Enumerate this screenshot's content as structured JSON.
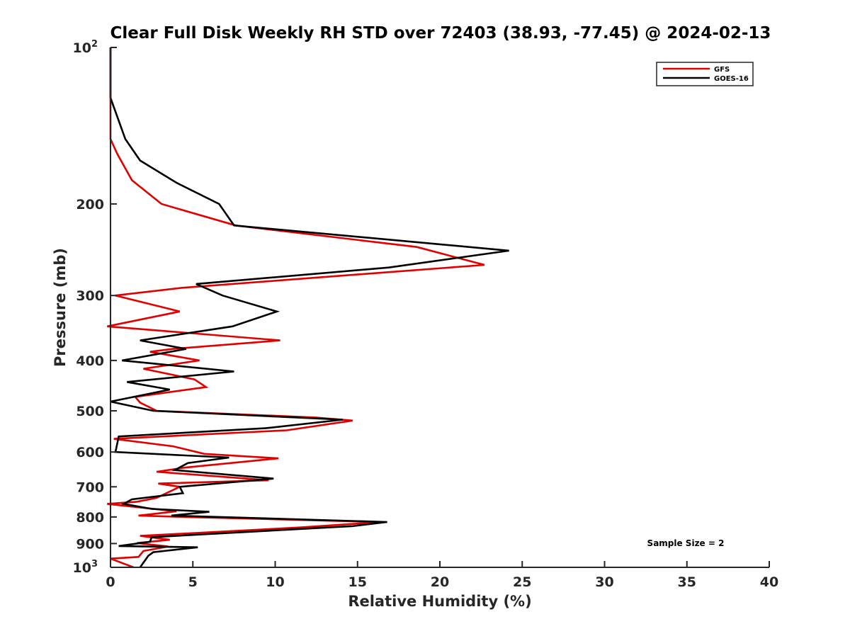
{
  "chart_data": {
    "type": "line",
    "title": "Clear Full Disk Weekly RH STD over 72403 (38.93, -77.45) @ 2024-02-13",
    "xlabel": "Relative Humidity (%)",
    "ylabel": "Pressure (mb)",
    "xlim": [
      0,
      40
    ],
    "ylim": [
      100,
      1000
    ],
    "y_scale": "log",
    "y_reversed": true,
    "grid": false,
    "legend_position": "top-right",
    "x_ticks": [
      "0",
      "5",
      "10",
      "15",
      "20",
      "25",
      "30",
      "35",
      "40"
    ],
    "y_ticks": [
      {
        "p": 100,
        "base": "10",
        "exp": "2"
      },
      {
        "p": 200,
        "base": "200",
        "exp": ""
      },
      {
        "p": 300,
        "base": "300",
        "exp": ""
      },
      {
        "p": 400,
        "base": "400",
        "exp": ""
      },
      {
        "p": 500,
        "base": "500",
        "exp": ""
      },
      {
        "p": 600,
        "base": "600",
        "exp": ""
      },
      {
        "p": 700,
        "base": "700",
        "exp": ""
      },
      {
        "p": 800,
        "base": "800",
        "exp": ""
      },
      {
        "p": 900,
        "base": "900",
        "exp": ""
      },
      {
        "p": 1000,
        "base": "10",
        "exp": "3"
      }
    ],
    "annotation": "Sample Size = 2",
    "series": [
      {
        "name": "GFS",
        "color": "#e00000",
        "points": [
          [
            0,
            100
          ],
          [
            0,
            125
          ],
          [
            0,
            150
          ],
          [
            0.4,
            160
          ],
          [
            1.3,
            180
          ],
          [
            3.1,
            200
          ],
          [
            7.6,
            220
          ],
          [
            18.6,
            242
          ],
          [
            22.7,
            262
          ],
          [
            4.3,
            290
          ],
          [
            0.3,
            300
          ],
          [
            4.2,
            322
          ],
          [
            -0.2,
            344
          ],
          [
            10.3,
            366
          ],
          [
            3.8,
            380
          ],
          [
            2.4,
            385
          ],
          [
            5.4,
            400
          ],
          [
            2,
            415
          ],
          [
            5.1,
            435
          ],
          [
            5.8,
            450
          ],
          [
            1.5,
            470
          ],
          [
            1.8,
            482
          ],
          [
            2.8,
            500
          ],
          [
            12.5,
            515
          ],
          [
            14.7,
            522
          ],
          [
            10.7,
            545
          ],
          [
            0.2,
            566
          ],
          [
            3.8,
            585
          ],
          [
            5.7,
            605
          ],
          [
            10.2,
            617
          ],
          [
            4.5,
            643
          ],
          [
            2.8,
            655
          ],
          [
            9.6,
            680
          ],
          [
            2.9,
            690
          ],
          [
            4.2,
            700
          ],
          [
            2.8,
            735
          ],
          [
            1.6,
            748
          ],
          [
            -0.2,
            755
          ],
          [
            2.3,
            770
          ],
          [
            4,
            780
          ],
          [
            2.5,
            790
          ],
          [
            1.7,
            795
          ],
          [
            4.6,
            800
          ],
          [
            16.4,
            818
          ],
          [
            11.5,
            838
          ],
          [
            1.8,
            870
          ],
          [
            3.6,
            885
          ],
          [
            1.6,
            898
          ],
          [
            3.5,
            912
          ],
          [
            2,
            930
          ],
          [
            1.7,
            955
          ],
          [
            0,
            962
          ],
          [
            1.4,
            1000
          ]
        ]
      },
      {
        "name": "GOES-16",
        "color": "#000000",
        "points": [
          [
            0,
            100
          ],
          [
            0,
            125
          ],
          [
            0.9,
            150
          ],
          [
            1.8,
            165
          ],
          [
            4,
            182
          ],
          [
            6.6,
            200
          ],
          [
            7.5,
            220
          ],
          [
            24.2,
            246
          ],
          [
            16.9,
            265
          ],
          [
            5.2,
            285
          ],
          [
            6.8,
            300
          ],
          [
            10.1,
            322
          ],
          [
            7.4,
            344
          ],
          [
            1.8,
            366
          ],
          [
            4.6,
            380
          ],
          [
            0.7,
            400
          ],
          [
            7.5,
            420
          ],
          [
            1,
            440
          ],
          [
            3.6,
            455
          ],
          [
            0,
            480
          ],
          [
            2.6,
            500
          ],
          [
            14.1,
            520
          ],
          [
            9.4,
            540
          ],
          [
            0.5,
            560
          ],
          [
            0.3,
            600
          ],
          [
            7.2,
            615
          ],
          [
            4.7,
            630
          ],
          [
            3.9,
            650
          ],
          [
            9.9,
            675
          ],
          [
            4.2,
            700
          ],
          [
            4.4,
            720
          ],
          [
            1.3,
            740
          ],
          [
            0.8,
            755
          ],
          [
            2.5,
            772
          ],
          [
            6,
            782
          ],
          [
            3.7,
            795
          ],
          [
            16.8,
            818
          ],
          [
            14.7,
            833
          ],
          [
            2.5,
            875
          ],
          [
            2.4,
            893
          ],
          [
            0.5,
            910
          ],
          [
            5.3,
            915
          ],
          [
            2.6,
            935
          ],
          [
            2.3,
            950
          ],
          [
            1.8,
            1000
          ]
        ]
      }
    ]
  }
}
